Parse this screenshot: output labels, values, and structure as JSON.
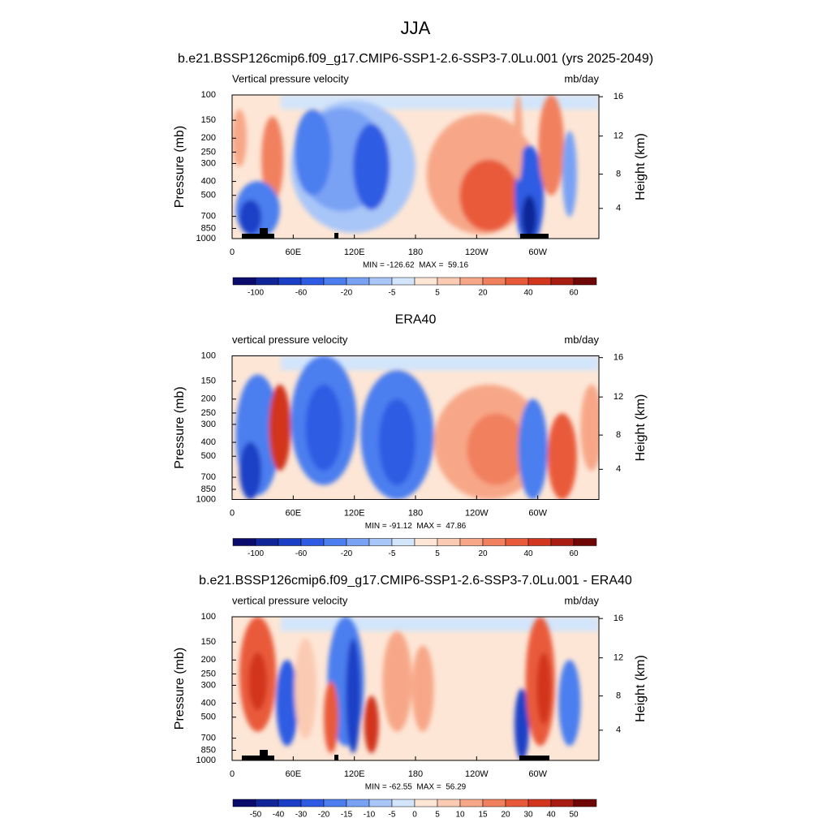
{
  "title": "JJA",
  "chart_data": [
    {
      "type": "contour",
      "title": "b.e21.BSSP126cmip6.f09_g17.CMIP6-SSP1-2.6-SSP3-7.0Lu.001 (yrs 2025-2049)",
      "subtitle_left": "Vertical pressure velocity",
      "subtitle_right": "mb/day",
      "ylabel": "Pressure (mb)",
      "y2label": "Height (km)",
      "xlim": [
        0,
        360
      ],
      "xticks": [
        0,
        {
          "value": 60,
          "label": "60E"
        },
        {
          "value": 120,
          "label": "120E"
        },
        180,
        {
          "value": 240,
          "label": "120W"
        },
        {
          "value": 300,
          "label": "60W"
        }
      ],
      "ylim": [
        1000,
        100
      ],
      "log_y": true,
      "yticks": [
        100,
        150,
        200,
        250,
        300,
        400,
        500,
        700,
        850,
        1000
      ],
      "y2ticks": [
        4,
        8,
        12,
        16
      ],
      "stats": "MIN = -126.62  MAX =  59.16",
      "colorbar": {
        "labels": [
          -100,
          -60,
          -20,
          -5,
          5,
          20,
          40,
          60
        ],
        "label_step": 2,
        "colors": [
          "#0b0b6e",
          "#0f2598",
          "#1a3fc6",
          "#2d5be3",
          "#4c7eef",
          "#79a2f4",
          "#a9c6f8",
          "#d3e5fa",
          "#fde6d6",
          "#fbcab2",
          "#f7a788",
          "#f1805e",
          "#e95a3a",
          "#d2361f",
          "#a81c12",
          "#700707"
        ]
      }
    },
    {
      "type": "contour",
      "title": "ERA40",
      "subtitle_left": "vertical pressure velocity",
      "subtitle_right": "mb/day",
      "ylabel": "Pressure (mb)",
      "y2label": "Height (km)",
      "xlim": [
        0,
        360
      ],
      "xticks": [
        0,
        {
          "value": 60,
          "label": "60E"
        },
        {
          "value": 120,
          "label": "120E"
        },
        180,
        {
          "value": 240,
          "label": "120W"
        },
        {
          "value": 300,
          "label": "60W"
        }
      ],
      "ylim": [
        1000,
        100
      ],
      "log_y": true,
      "yticks": [
        100,
        150,
        200,
        250,
        300,
        400,
        500,
        700,
        850,
        1000
      ],
      "y2ticks": [
        4,
        8,
        12,
        16
      ],
      "stats": "MIN = -91.12  MAX =  47.86",
      "colorbar": {
        "labels": [
          -100,
          -60,
          -20,
          -5,
          5,
          20,
          40,
          60
        ],
        "label_step": 2,
        "colors": [
          "#0b0b6e",
          "#0f2598",
          "#1a3fc6",
          "#2d5be3",
          "#4c7eef",
          "#79a2f4",
          "#a9c6f8",
          "#d3e5fa",
          "#fde6d6",
          "#fbcab2",
          "#f7a788",
          "#f1805e",
          "#e95a3a",
          "#d2361f",
          "#a81c12",
          "#700707"
        ]
      }
    },
    {
      "type": "contour",
      "title": "b.e21.BSSP126cmip6.f09_g17.CMIP6-SSP1-2.6-SSP3-7.0Lu.001 - ERA40",
      "subtitle_left": "vertical pressure velocity",
      "subtitle_right": "mb/day",
      "ylabel": "Pressure (mb)",
      "y2label": "Height (km)",
      "xlim": [
        0,
        360
      ],
      "xticks": [
        0,
        {
          "value": 60,
          "label": "60E"
        },
        {
          "value": 120,
          "label": "120E"
        },
        180,
        {
          "value": 240,
          "label": "120W"
        },
        {
          "value": 300,
          "label": "60W"
        }
      ],
      "ylim": [
        1000,
        100
      ],
      "log_y": true,
      "yticks": [
        100,
        150,
        200,
        250,
        300,
        400,
        500,
        700,
        850,
        1000
      ],
      "y2ticks": [
        4,
        8,
        12,
        16
      ],
      "stats": "MIN = -62.55  MAX =  56.29",
      "colorbar": {
        "labels": [
          -50,
          -40,
          -30,
          -20,
          -15,
          -10,
          -5,
          0,
          5,
          10,
          15,
          20,
          30,
          40,
          50
        ],
        "label_step": 1,
        "colors": [
          "#0b0b6e",
          "#0f2598",
          "#1a3fc6",
          "#2d5be3",
          "#4c7eef",
          "#79a2f4",
          "#a9c6f8",
          "#d3e5fa",
          "#fde6d6",
          "#fbcab2",
          "#f7a788",
          "#f1805e",
          "#e95a3a",
          "#d2361f",
          "#a81c12",
          "#700707"
        ]
      }
    }
  ]
}
